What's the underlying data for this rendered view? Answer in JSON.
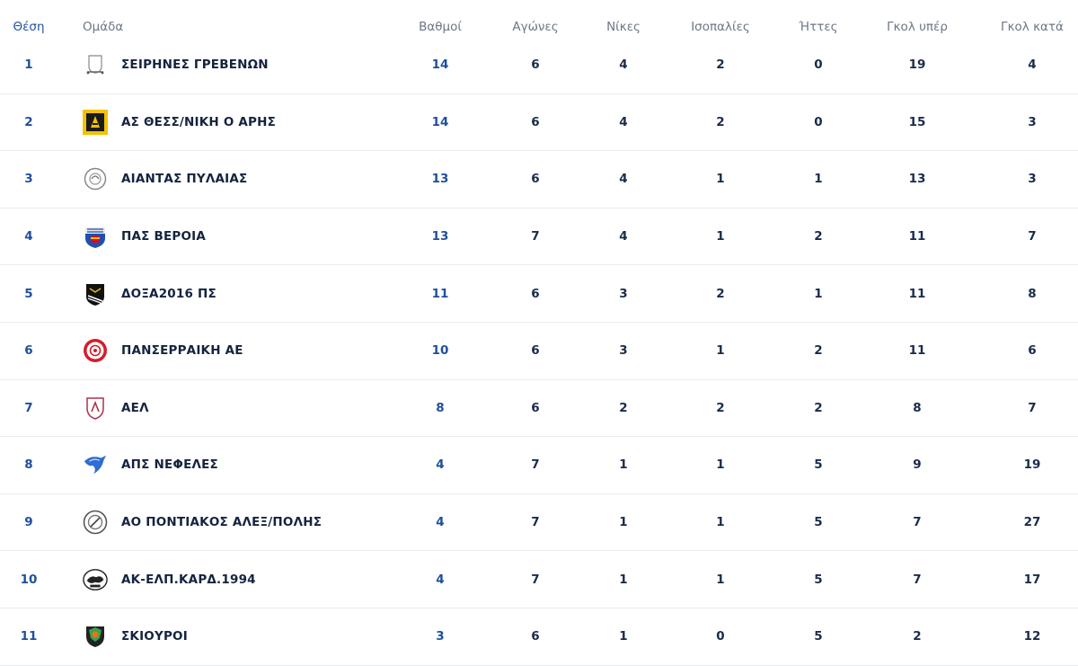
{
  "headers": {
    "position": "Θέση",
    "team": "Ομάδα",
    "points": "Βαθμοί",
    "played": "Αγώνες",
    "wins": "Νίκες",
    "draws": "Ισοπαλίες",
    "losses": "Ήττες",
    "goals_for": "Γκολ υπέρ",
    "goals_against": "Γκολ κατά"
  },
  "rows": [
    {
      "pos": "1",
      "team": "ΣΕΙΡΗΝΕΣ ΓΡΕΒΕΝΩΝ",
      "logo": "trophy-outline-icon",
      "pts": "14",
      "mp": "6",
      "w": "4",
      "d": "2",
      "l": "0",
      "gf": "19",
      "ga": "4"
    },
    {
      "pos": "2",
      "team": "ΑΣ ΘΕΣΣ/ΝΙΚΗ Ο ΑΡΗΣ",
      "logo": "aris-crest-icon",
      "pts": "14",
      "mp": "6",
      "w": "4",
      "d": "2",
      "l": "0",
      "gf": "15",
      "ga": "3"
    },
    {
      "pos": "3",
      "team": "ΑΙΑΝΤΑΣ ΠΥΛΑΙΑΣ",
      "logo": "round-crest-icon",
      "pts": "13",
      "mp": "6",
      "w": "4",
      "d": "1",
      "l": "1",
      "gf": "13",
      "ga": "3"
    },
    {
      "pos": "4",
      "team": "ΠΑΣ ΒΕΡΟΙΑ",
      "logo": "shield-crest-icon",
      "pts": "13",
      "mp": "7",
      "w": "4",
      "d": "1",
      "l": "2",
      "gf": "11",
      "ga": "7"
    },
    {
      "pos": "5",
      "team": "ΔΟΞΑ2016 ΠΣ",
      "logo": "black-shield-icon",
      "pts": "11",
      "mp": "6",
      "w": "3",
      "d": "2",
      "l": "1",
      "gf": "11",
      "ga": "8"
    },
    {
      "pos": "6",
      "team": "ΠΑΝΣΕΡΡΑΙΚΗ ΑΕ",
      "logo": "red-round-crest-icon",
      "pts": "10",
      "mp": "6",
      "w": "3",
      "d": "1",
      "l": "2",
      "gf": "11",
      "ga": "6"
    },
    {
      "pos": "7",
      "team": "ΑΕΛ",
      "logo": "maroon-shield-icon",
      "pts": "8",
      "mp": "6",
      "w": "2",
      "d": "2",
      "l": "2",
      "gf": "8",
      "ga": "7"
    },
    {
      "pos": "8",
      "team": "ΑΠΣ ΝΕΦΕΛΕΣ",
      "logo": "blue-bird-icon",
      "pts": "4",
      "mp": "7",
      "w": "1",
      "d": "1",
      "l": "5",
      "gf": "9",
      "ga": "19"
    },
    {
      "pos": "9",
      "team": "ΑΟ ΠΟΝΤΙΑΚΟΣ ΑΛΕΞ/ΠΟΛΗΣ",
      "logo": "grey-round-crest-icon",
      "pts": "4",
      "mp": "7",
      "w": "1",
      "d": "1",
      "l": "5",
      "gf": "7",
      "ga": "27"
    },
    {
      "pos": "10",
      "team": "ΑΚ-ΕΛΠ.ΚΑΡΔ.1994",
      "logo": "panther-crest-icon",
      "pts": "4",
      "mp": "7",
      "w": "1",
      "d": "1",
      "l": "5",
      "gf": "7",
      "ga": "17"
    },
    {
      "pos": "11",
      "team": "ΣΚΙΟΥΡΟΙ",
      "logo": "green-orange-crest-icon",
      "pts": "3",
      "mp": "6",
      "w": "1",
      "d": "0",
      "l": "5",
      "gf": "2",
      "ga": "12"
    }
  ],
  "colors": {
    "accent": "#1f4f9c",
    "text": "#14233f",
    "header_text": "#6b7685",
    "divider": "#e8ebf0"
  }
}
